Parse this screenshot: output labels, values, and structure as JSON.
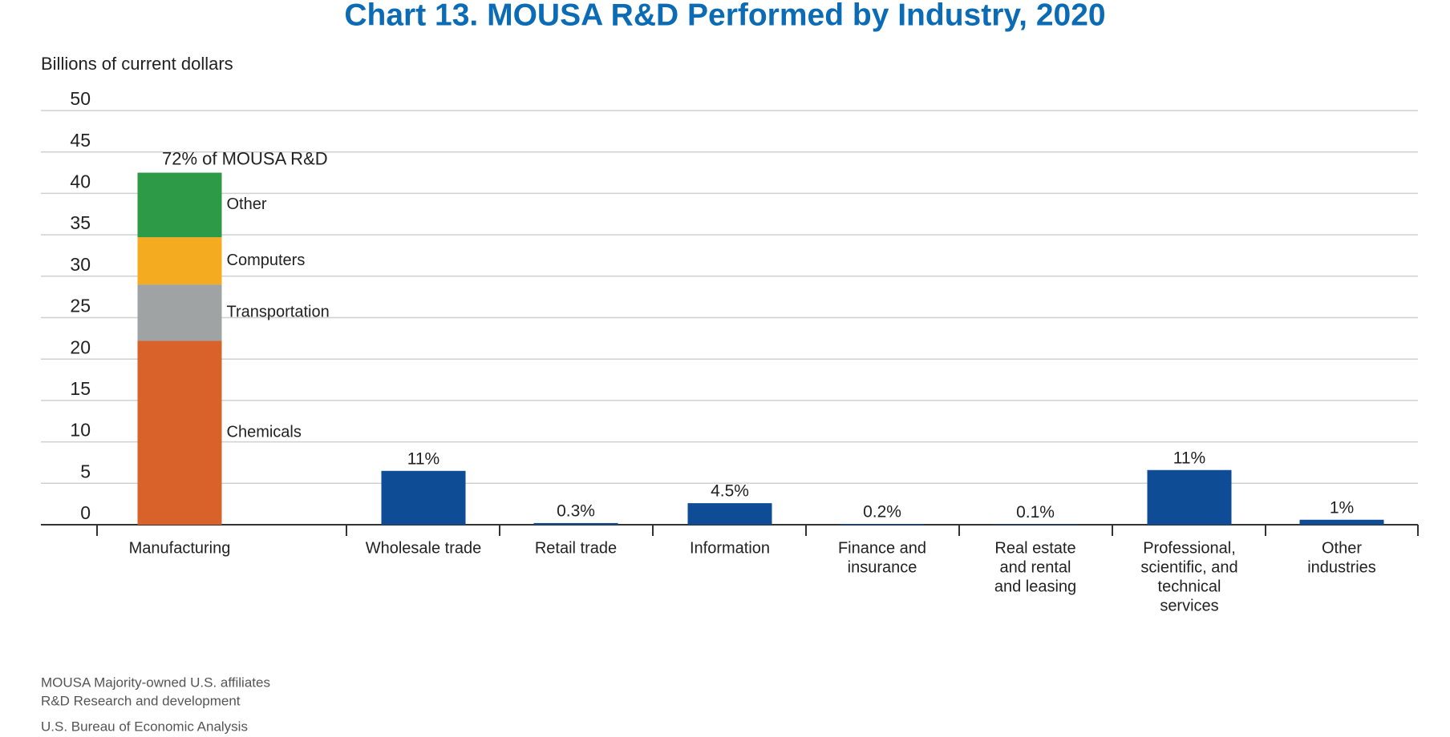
{
  "chart_data": {
    "type": "stacked_bar",
    "title": "Chart 13. MOUSA R&D Performed by Industry, 2020",
    "y_axis_label": "Billions of current dollars",
    "categories": [
      [
        "Manufacturing"
      ],
      [
        "Wholesale trade"
      ],
      [
        "Retail trade"
      ],
      [
        "Information"
      ],
      [
        "Finance and",
        "insurance"
      ],
      [
        "Real estate",
        "and rental",
        "and leasing"
      ],
      [
        "Professional,",
        "scientific, and",
        "technical",
        "services"
      ],
      [
        "Other",
        "industries"
      ]
    ],
    "series": [
      {
        "name": "Chemicals",
        "color": "#d9622b",
        "values": [
          22.2,
          null,
          null,
          null,
          null,
          null,
          null,
          null
        ]
      },
      {
        "name": "Transportation",
        "color": "#a0a3a4",
        "values": [
          6.8,
          null,
          null,
          null,
          null,
          null,
          null,
          null
        ]
      },
      {
        "name": "Computers",
        "color": "#f4ab1f",
        "values": [
          5.7,
          null,
          null,
          null,
          null,
          null,
          null,
          null
        ]
      },
      {
        "name": "Other",
        "color": "#2d9a47",
        "values": [
          7.8,
          null,
          null,
          null,
          null,
          null,
          null,
          null
        ]
      },
      {
        "color": "#0f4c96",
        "values": [
          null,
          6.5,
          0.2,
          2.6,
          0.1,
          0.05,
          6.6,
          0.6
        ]
      }
    ],
    "share_labels": [
      "72% of MOUSA R&D",
      "11%",
      "0.3%",
      "4.5%",
      "0.2%",
      "0.1%",
      "11%",
      "1%"
    ],
    "ylim": [
      0,
      50
    ],
    "yticks": [
      0,
      5,
      10,
      15,
      20,
      25,
      30,
      35,
      40,
      45,
      50
    ],
    "grid": true,
    "footnotes": [
      "MOUSA  Majority-owned U.S. affiliates",
      "R&D  Research and development",
      "U.S. Bureau of Economic Analysis"
    ]
  }
}
